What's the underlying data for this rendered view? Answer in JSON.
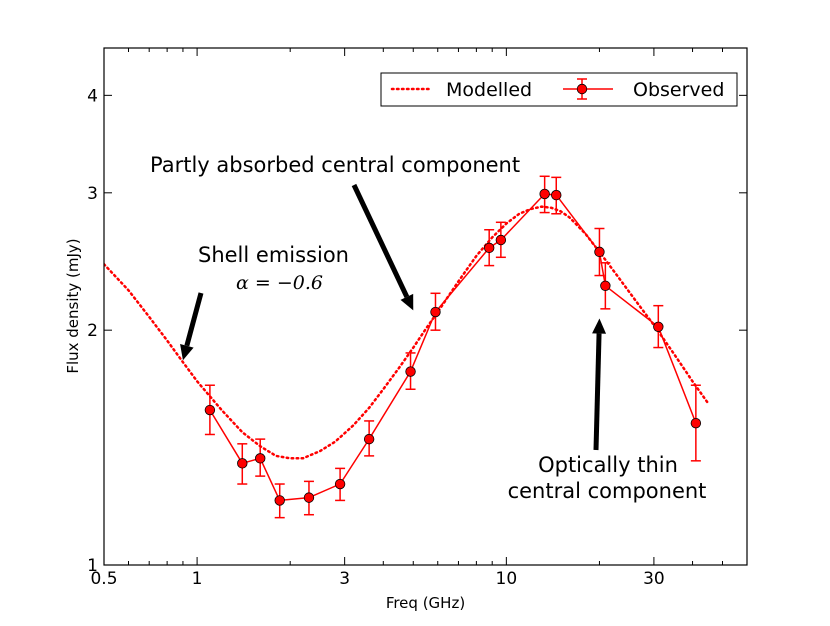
{
  "chart_data": {
    "type": "line",
    "title": "",
    "xlabel": "Freq (GHz)",
    "ylabel": "Flux density (mJy)",
    "x_scale": "log",
    "y_scale": "log",
    "xlim": [
      0.5,
      60
    ],
    "ylim": [
      1.0,
      4.6
    ],
    "x_ticks": [
      {
        "value": 0.5,
        "label": "0.5"
      },
      {
        "value": 1,
        "label": "1"
      },
      {
        "value": 3,
        "label": "3"
      },
      {
        "value": 10,
        "label": "10"
      },
      {
        "value": 30,
        "label": "30"
      }
    ],
    "y_ticks": [
      {
        "value": 1,
        "label": "1"
      },
      {
        "value": 2,
        "label": "2"
      },
      {
        "value": 3,
        "label": "3"
      },
      {
        "value": 4,
        "label": "4"
      }
    ],
    "legend": {
      "position": "top-right",
      "entries": [
        {
          "label": "Modelled",
          "series": "modelled"
        },
        {
          "label": "Observed",
          "series": "observed"
        }
      ]
    },
    "colors": {
      "series": "#ff0000",
      "marker_edge": "#000000",
      "arrow": "#000000"
    },
    "series": [
      {
        "name": "Observed",
        "key": "observed",
        "style": "line+markers+errorbars",
        "x": [
          1.1,
          1.4,
          1.6,
          1.85,
          2.3,
          2.9,
          3.6,
          4.9,
          5.9,
          8.8,
          9.6,
          13.3,
          14.5,
          20.0,
          20.9,
          31.0,
          41.0
        ],
        "y": [
          1.58,
          1.35,
          1.37,
          1.21,
          1.22,
          1.27,
          1.45,
          1.77,
          2.11,
          2.55,
          2.61,
          2.99,
          2.98,
          2.52,
          2.28,
          2.02,
          1.52
        ],
        "err_lo": [
          0.11,
          0.08,
          0.07,
          0.06,
          0.06,
          0.06,
          0.07,
          0.09,
          0.11,
          0.13,
          0.13,
          0.16,
          0.16,
          0.17,
          0.15,
          0.12,
          0.16
        ],
        "err_hi": [
          0.12,
          0.08,
          0.08,
          0.06,
          0.06,
          0.06,
          0.08,
          0.1,
          0.12,
          0.14,
          0.14,
          0.16,
          0.16,
          0.18,
          0.16,
          0.13,
          0.18
        ]
      },
      {
        "name": "Modelled",
        "key": "modelled",
        "style": "dotted",
        "x": [
          0.5,
          0.6,
          0.7,
          0.8,
          0.9,
          1.0,
          1.2,
          1.4,
          1.6,
          1.8,
          2.0,
          2.2,
          2.5,
          2.8,
          3.2,
          3.6,
          4.0,
          4.5,
          5.0,
          5.5,
          6.0,
          7.0,
          8.0,
          9.0,
          10.0,
          11.0,
          12.0,
          13.0,
          14.0,
          15.0,
          16.0,
          18.0,
          20.0,
          23.0,
          26.0,
          30.0,
          35.0,
          40.0,
          45.0
        ],
        "y": [
          2.43,
          2.25,
          2.08,
          1.94,
          1.82,
          1.72,
          1.58,
          1.48,
          1.42,
          1.38,
          1.37,
          1.37,
          1.4,
          1.44,
          1.51,
          1.59,
          1.68,
          1.79,
          1.9,
          2.01,
          2.11,
          2.31,
          2.49,
          2.63,
          2.74,
          2.82,
          2.86,
          2.88,
          2.87,
          2.84,
          2.79,
          2.66,
          2.52,
          2.34,
          2.19,
          2.03,
          1.86,
          1.72,
          1.61
        ]
      }
    ],
    "annotations": [
      {
        "text": "Partly absorbed central component",
        "arrow_to": {
          "x": 5.0,
          "y": 2.12
        }
      },
      {
        "text": "Shell emission",
        "math": "α = −0.6",
        "arrow_to": {
          "x": 0.9,
          "y": 1.83
        }
      },
      {
        "lines": [
          "Optically thin",
          "central component"
        ],
        "arrow_to": {
          "x": 20.0,
          "y": 2.07
        }
      }
    ]
  }
}
